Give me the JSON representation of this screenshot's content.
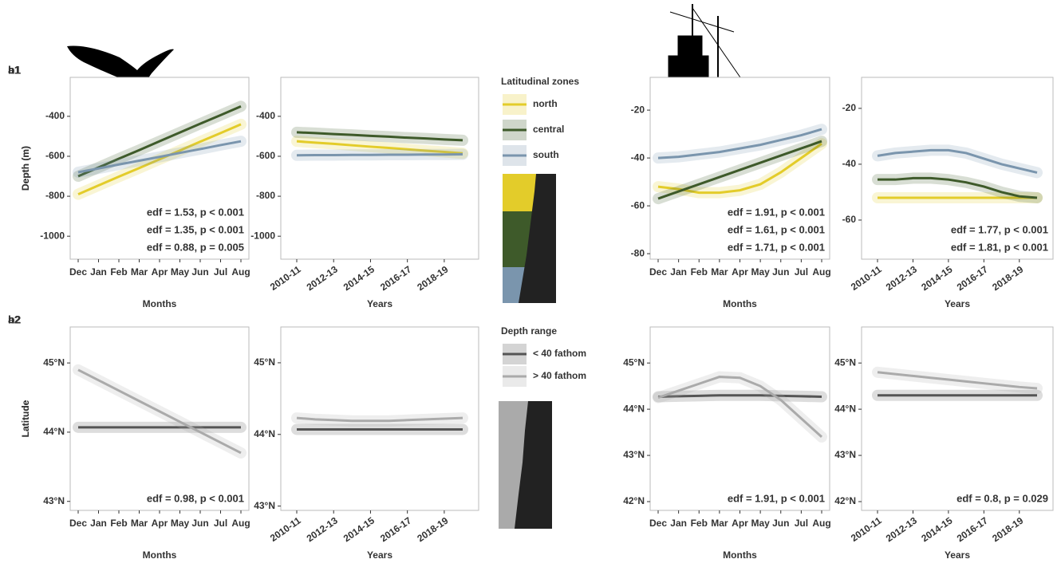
{
  "chart_data": [
    {
      "type": "line",
      "title": "a1",
      "ylabel": "Depth (m)",
      "xlabel": "Months",
      "categories": [
        "Dec",
        "Jan",
        "Feb",
        "Mar",
        "Apr",
        "May",
        "Jun",
        "Jul",
        "Aug"
      ],
      "ylim": [
        -1115,
        -205
      ],
      "yticks": [
        -1000,
        -800,
        -600,
        -400
      ],
      "legend": {
        "title": "Latitudinal zones",
        "entries": [
          {
            "label": "north",
            "color": "#e3cc2a"
          },
          {
            "label": "central",
            "color": "#3e5a2a"
          },
          {
            "label": "south",
            "color": "#7a95ad"
          }
        ]
      },
      "series": [
        {
          "color": "#e3cc2a",
          "values": [
            -790,
            -746,
            -702,
            -659,
            -615,
            -571,
            -527,
            -484,
            -440
          ]
        },
        {
          "color": "#3e5a2a",
          "values": [
            -700,
            -656,
            -612,
            -569,
            -525,
            -481,
            -437,
            -394,
            -350
          ]
        },
        {
          "color": "#7a95ad",
          "values": [
            -680,
            -661,
            -641,
            -622,
            -603,
            -583,
            -564,
            -544,
            -525
          ]
        }
      ],
      "annotations": [
        {
          "text": "edf = 1.53, p < 0.001",
          "color": "#e3cc2a"
        },
        {
          "text": "edf = 1.35, p < 0.001",
          "color": "#3e5a2a"
        },
        {
          "text": "edf = 0.88, p = 0.005",
          "color": "#7a95ad"
        }
      ]
    },
    {
      "type": "line",
      "xlabel": "Years",
      "categories": [
        "2010-11",
        null,
        "2012-13",
        null,
        "2014-15",
        null,
        "2016-17",
        null,
        "2018-19",
        null
      ],
      "ylim": [
        -1115,
        -205
      ],
      "yticks": [
        -1000,
        -800,
        -600,
        -400
      ],
      "series": [
        {
          "color": "#e3cc2a",
          "values": [
            -525,
            -532,
            -538,
            -545,
            -552,
            -558,
            -565,
            -572,
            -578,
            -585
          ]
        },
        {
          "color": "#3e5a2a",
          "values": [
            -480,
            -484,
            -489,
            -493,
            -498,
            -502,
            -507,
            -511,
            -516,
            -520
          ]
        },
        {
          "color": "#7a95ad",
          "values": [
            -595,
            -594,
            -594,
            -593,
            -593,
            -592,
            -592,
            -591,
            -591,
            -590
          ]
        }
      ]
    },
    {
      "type": "line",
      "title": "a2",
      "ylabel": "Latitude",
      "xlabel": "Months",
      "categories": [
        "Dec",
        "Jan",
        "Feb",
        "Mar",
        "Apr",
        "May",
        "Jun",
        "Jul",
        "Aug"
      ],
      "ylim": [
        42.87,
        45.52
      ],
      "yticks": [
        {
          "value": 43,
          "label": "43°N"
        },
        {
          "value": 44,
          "label": "44°N"
        },
        {
          "value": 45,
          "label": "45°N"
        }
      ],
      "legend": {
        "title": "Depth range",
        "entries": [
          {
            "label": "< 40 fathom",
            "color": "#555555"
          },
          {
            "label": "> 40 fathom",
            "color": "#aaaaaa"
          }
        ]
      },
      "series": [
        {
          "color": "#555555",
          "values": [
            44.07,
            44.07,
            44.07,
            44.07,
            44.07,
            44.07,
            44.07,
            44.07,
            44.07
          ]
        },
        {
          "color": "#aaaaaa",
          "values": [
            44.9,
            44.75,
            44.6,
            44.45,
            44.3,
            44.15,
            44.0,
            43.85,
            43.7
          ]
        }
      ],
      "annotations": [
        {
          "text": "edf = 0.98, p < 0.001",
          "color": "#aaaaaa"
        }
      ]
    },
    {
      "type": "line",
      "xlabel": "Years",
      "categories": [
        "2010-11",
        null,
        "2012-13",
        null,
        "2014-15",
        null,
        "2016-17",
        null,
        "2018-19",
        null
      ],
      "ylim": [
        42.94,
        45.5
      ],
      "yticks": [
        {
          "value": 43,
          "label": "43°N"
        },
        {
          "value": 44,
          "label": "44°N"
        },
        {
          "value": 45,
          "label": "45°N"
        }
      ],
      "series": [
        {
          "color": "#555555",
          "values": [
            44.07,
            44.07,
            44.07,
            44.07,
            44.07,
            44.07,
            44.07,
            44.07,
            44.07,
            44.07
          ]
        },
        {
          "color": "#aaaaaa",
          "values": [
            44.23,
            44.21,
            44.2,
            44.19,
            44.19,
            44.19,
            44.2,
            44.21,
            44.22,
            44.23
          ]
        }
      ]
    },
    {
      "type": "line",
      "title": "b1",
      "ylabel": "Depth (m)",
      "xlabel": "Months",
      "categories": [
        "Dec",
        "Jan",
        "Feb",
        "Mar",
        "Apr",
        "May",
        "Jun",
        "Jul",
        "Aug"
      ],
      "ylim": [
        -82.3,
        -6.3
      ],
      "yticks": [
        -80,
        -60,
        -40,
        -20
      ],
      "series": [
        {
          "color": "#e3cc2a",
          "values": [
            -52,
            -53,
            -54.5,
            -54.5,
            -53.5,
            -51,
            -46,
            -40,
            -34
          ]
        },
        {
          "color": "#3e5a2a",
          "values": [
            -57,
            -54,
            -51,
            -48,
            -45,
            -42,
            -39,
            -36,
            -33
          ]
        },
        {
          "color": "#7a95ad",
          "values": [
            -40,
            -39.5,
            -38.5,
            -37.5,
            -36,
            -34.5,
            -32.5,
            -30.5,
            -28
          ]
        }
      ],
      "annotations": [
        {
          "text": "edf = 1.91, p < 0.001",
          "color": "#e3cc2a"
        },
        {
          "text": "edf = 1.61, p < 0.001",
          "color": "#3e5a2a"
        },
        {
          "text": "edf = 1.71, p < 0.001",
          "color": "#7a95ad"
        }
      ]
    },
    {
      "type": "line",
      "xlabel": "Years",
      "categories": [
        "2010-11",
        null,
        "2012-13",
        null,
        "2014-15",
        null,
        "2016-17",
        null,
        "2018-19",
        null
      ],
      "ylim": [
        -74,
        -8.9
      ],
      "yticks": [
        -60,
        -40,
        -20
      ],
      "series": [
        {
          "color": "#e3cc2a",
          "values": [
            -52,
            -52,
            -52,
            -52,
            -52,
            -52,
            -52,
            -52,
            -52,
            -52
          ]
        },
        {
          "color": "#3e5a2a",
          "values": [
            -45.5,
            -45.5,
            -45,
            -45,
            -45.5,
            -46.5,
            -48,
            -50,
            -51.5,
            -52
          ]
        },
        {
          "color": "#7a95ad",
          "values": [
            -37,
            -36,
            -35.5,
            -35,
            -35,
            -36,
            -38,
            -40,
            -41.5,
            -43
          ]
        }
      ],
      "annotations": [
        {
          "text": "edf = 1.77, p < 0.001",
          "color": "#3e5a2a"
        },
        {
          "text": "edf = 1.81, p < 0.001",
          "color": "#7a95ad"
        }
      ]
    },
    {
      "type": "line",
      "title": "b2",
      "ylabel": "Latitude",
      "xlabel": "Months",
      "categories": [
        "Dec",
        "Jan",
        "Feb",
        "Mar",
        "Apr",
        "May",
        "Jun",
        "Jul",
        "Aug"
      ],
      "ylim": [
        41.81,
        45.78
      ],
      "yticks": [
        {
          "value": 42,
          "label": "42°N"
        },
        {
          "value": 43,
          "label": "43°N"
        },
        {
          "value": 44,
          "label": "44°N"
        },
        {
          "value": 45,
          "label": "45°N"
        }
      ],
      "series": [
        {
          "color": "#555555",
          "values": [
            44.27,
            44.28,
            44.29,
            44.3,
            44.3,
            44.3,
            44.29,
            44.28,
            44.27
          ]
        },
        {
          "color": "#aaaaaa",
          "values": [
            44.25,
            44.4,
            44.55,
            44.7,
            44.68,
            44.5,
            44.2,
            43.8,
            43.4
          ]
        }
      ],
      "annotations": [
        {
          "text": "edf = 1.91, p < 0.001",
          "color": "#aaaaaa"
        }
      ]
    },
    {
      "type": "line",
      "xlabel": "Years",
      "categories": [
        "2010-11",
        null,
        "2012-13",
        null,
        "2014-15",
        null,
        "2016-17",
        null,
        "2018-19",
        null
      ],
      "ylim": [
        41.81,
        45.78
      ],
      "yticks": [
        {
          "value": 42,
          "label": "42°N"
        },
        {
          "value": 43,
          "label": "43°N"
        },
        {
          "value": 44,
          "label": "44°N"
        },
        {
          "value": 45,
          "label": "45°N"
        }
      ],
      "series": [
        {
          "color": "#555555",
          "values": [
            44.3,
            44.3,
            44.3,
            44.3,
            44.3,
            44.3,
            44.3,
            44.3,
            44.3,
            44.3
          ]
        },
        {
          "color": "#aaaaaa",
          "values": [
            44.8,
            44.76,
            44.72,
            44.68,
            44.64,
            44.6,
            44.56,
            44.52,
            44.48,
            44.45
          ]
        }
      ],
      "annotations": [
        {
          "text": "edf = 0.8, p = 0.029",
          "color": "#aaaaaa"
        }
      ]
    }
  ]
}
